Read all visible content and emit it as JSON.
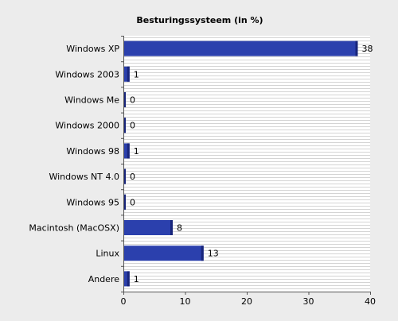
{
  "chart_data": {
    "type": "bar",
    "orientation": "horizontal",
    "title": "Besturingssysteem (in %)",
    "categories": [
      "Windows XP",
      "Windows 2003",
      "Windows Me",
      "Windows 2000",
      "Windows 98",
      "Windows NT 4.0",
      "Windows 95",
      "Macintosh (MacOSX)",
      "Linux",
      "Andere"
    ],
    "values": [
      38,
      1,
      0,
      0,
      1,
      0,
      0,
      8,
      13,
      1
    ],
    "value_labels": [
      "38",
      "1",
      "0",
      "0",
      "1",
      "0",
      "0",
      "8",
      "13",
      "1"
    ],
    "xlim": [
      0,
      40
    ],
    "x_ticks": [
      0,
      10,
      20,
      30,
      40
    ],
    "x_tick_labels": [
      "0",
      "10",
      "20",
      "30",
      "40"
    ],
    "xlabel": "",
    "ylabel": "",
    "grid": true,
    "legend": "none",
    "colors": {
      "background": "#ececec",
      "plot_background": "#ffffff",
      "grid": "#d4d4d4",
      "bar_fill": "#2b40ad",
      "bar_edge": "#18257a",
      "axis": "#555555"
    }
  }
}
